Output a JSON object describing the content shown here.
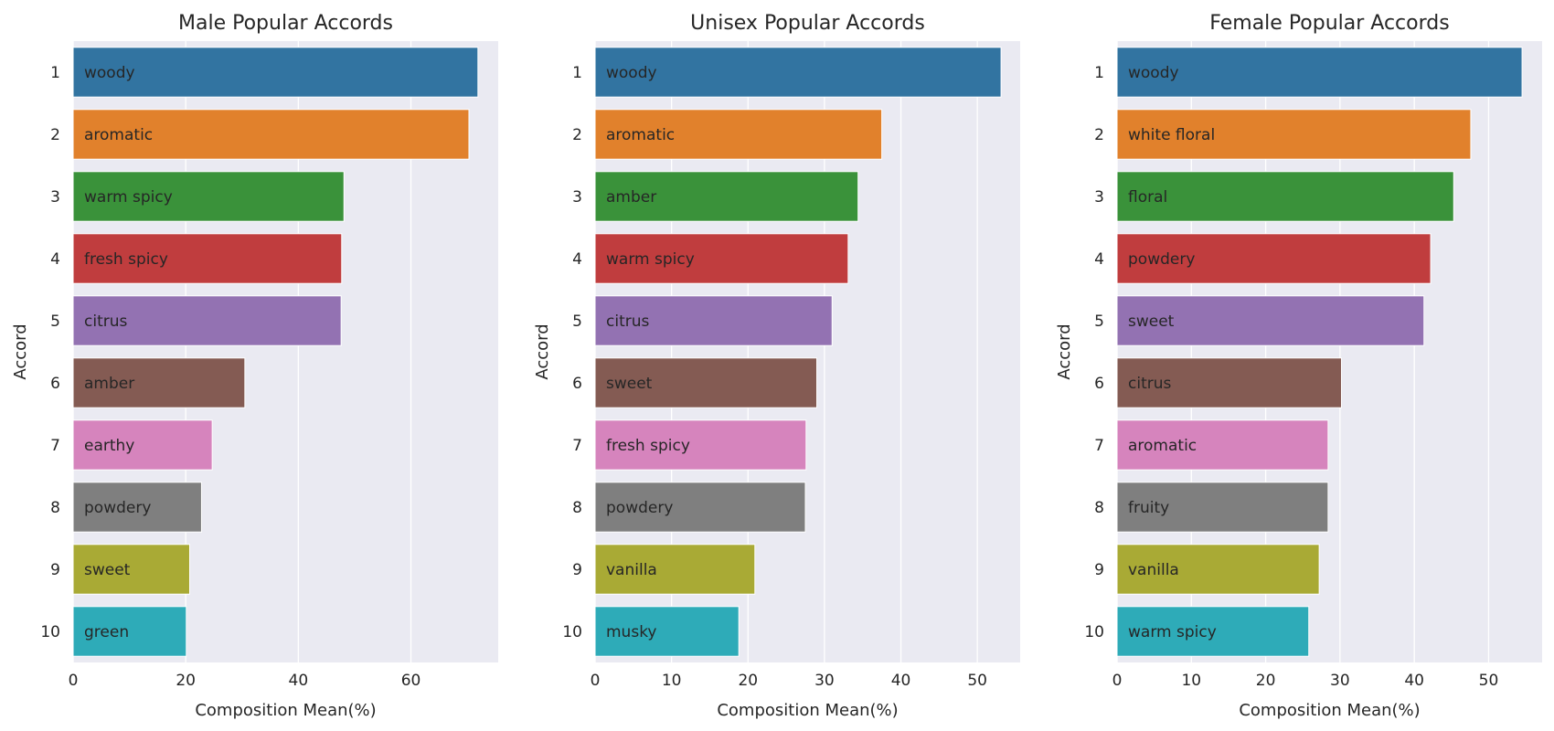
{
  "chart_data": [
    {
      "type": "bar",
      "orientation": "horizontal",
      "title": "Male Popular Accords",
      "xlabel": "Composition Mean(%)",
      "ylabel": "Accord",
      "xlim": [
        0,
        75.5
      ],
      "xticks": [
        0,
        20,
        40,
        60
      ],
      "grid": true,
      "categories": [
        "1",
        "2",
        "3",
        "4",
        "5",
        "6",
        "7",
        "8",
        "9",
        "10"
      ],
      "bar_labels": [
        "woody",
        "aromatic",
        "warm spicy",
        "fresh spicy",
        "citrus",
        "amber",
        "earthy",
        "powdery",
        "sweet",
        "green"
      ],
      "values": [
        71.9,
        70.3,
        48.1,
        47.7,
        47.6,
        30.5,
        24.7,
        22.8,
        20.7,
        20.1
      ],
      "colors": [
        "#3274a1",
        "#e1812c",
        "#3a923a",
        "#c03d3e",
        "#9372b2",
        "#845b53",
        "#d684bd",
        "#7f7f7f",
        "#a9aa35",
        "#2eabb8"
      ]
    },
    {
      "type": "bar",
      "orientation": "horizontal",
      "title": "Unisex Popular Accords",
      "xlabel": "Composition Mean(%)",
      "ylabel": "Accord",
      "xlim": [
        0,
        55.6
      ],
      "xticks": [
        0,
        10,
        20,
        30,
        40,
        50
      ],
      "grid": true,
      "categories": [
        "1",
        "2",
        "3",
        "4",
        "5",
        "6",
        "7",
        "8",
        "9",
        "10"
      ],
      "bar_labels": [
        "woody",
        "aromatic",
        "amber",
        "warm spicy",
        "citrus",
        "sweet",
        "fresh spicy",
        "powdery",
        "vanilla",
        "musky"
      ],
      "values": [
        53.1,
        37.5,
        34.4,
        33.1,
        31.0,
        29.0,
        27.6,
        27.5,
        20.9,
        18.8
      ],
      "colors": [
        "#3274a1",
        "#e1812c",
        "#3a923a",
        "#c03d3e",
        "#9372b2",
        "#845b53",
        "#d684bd",
        "#7f7f7f",
        "#a9aa35",
        "#2eabb8"
      ]
    },
    {
      "type": "bar",
      "orientation": "horizontal",
      "title": "Female Popular Accords",
      "xlabel": "Composition Mean(%)",
      "ylabel": "Accord",
      "xlim": [
        0,
        57.2
      ],
      "xticks": [
        0,
        10,
        20,
        30,
        40,
        50
      ],
      "grid": true,
      "categories": [
        "1",
        "2",
        "3",
        "4",
        "5",
        "6",
        "7",
        "8",
        "9",
        "10"
      ],
      "bar_labels": [
        "woody",
        "white floral",
        "floral",
        "powdery",
        "sweet",
        "citrus",
        "aromatic",
        "fruity",
        "vanilla",
        "warm spicy"
      ],
      "values": [
        54.5,
        47.6,
        45.3,
        42.2,
        41.3,
        30.2,
        28.4,
        28.4,
        27.2,
        25.8
      ],
      "colors": [
        "#3274a1",
        "#e1812c",
        "#3a923a",
        "#c03d3e",
        "#9372b2",
        "#845b53",
        "#d684bd",
        "#7f7f7f",
        "#a9aa35",
        "#2eabb8"
      ]
    }
  ],
  "style": {
    "plot_background": "#eaeaf2",
    "grid_color": "#ffffff",
    "text_color": "#262626"
  }
}
